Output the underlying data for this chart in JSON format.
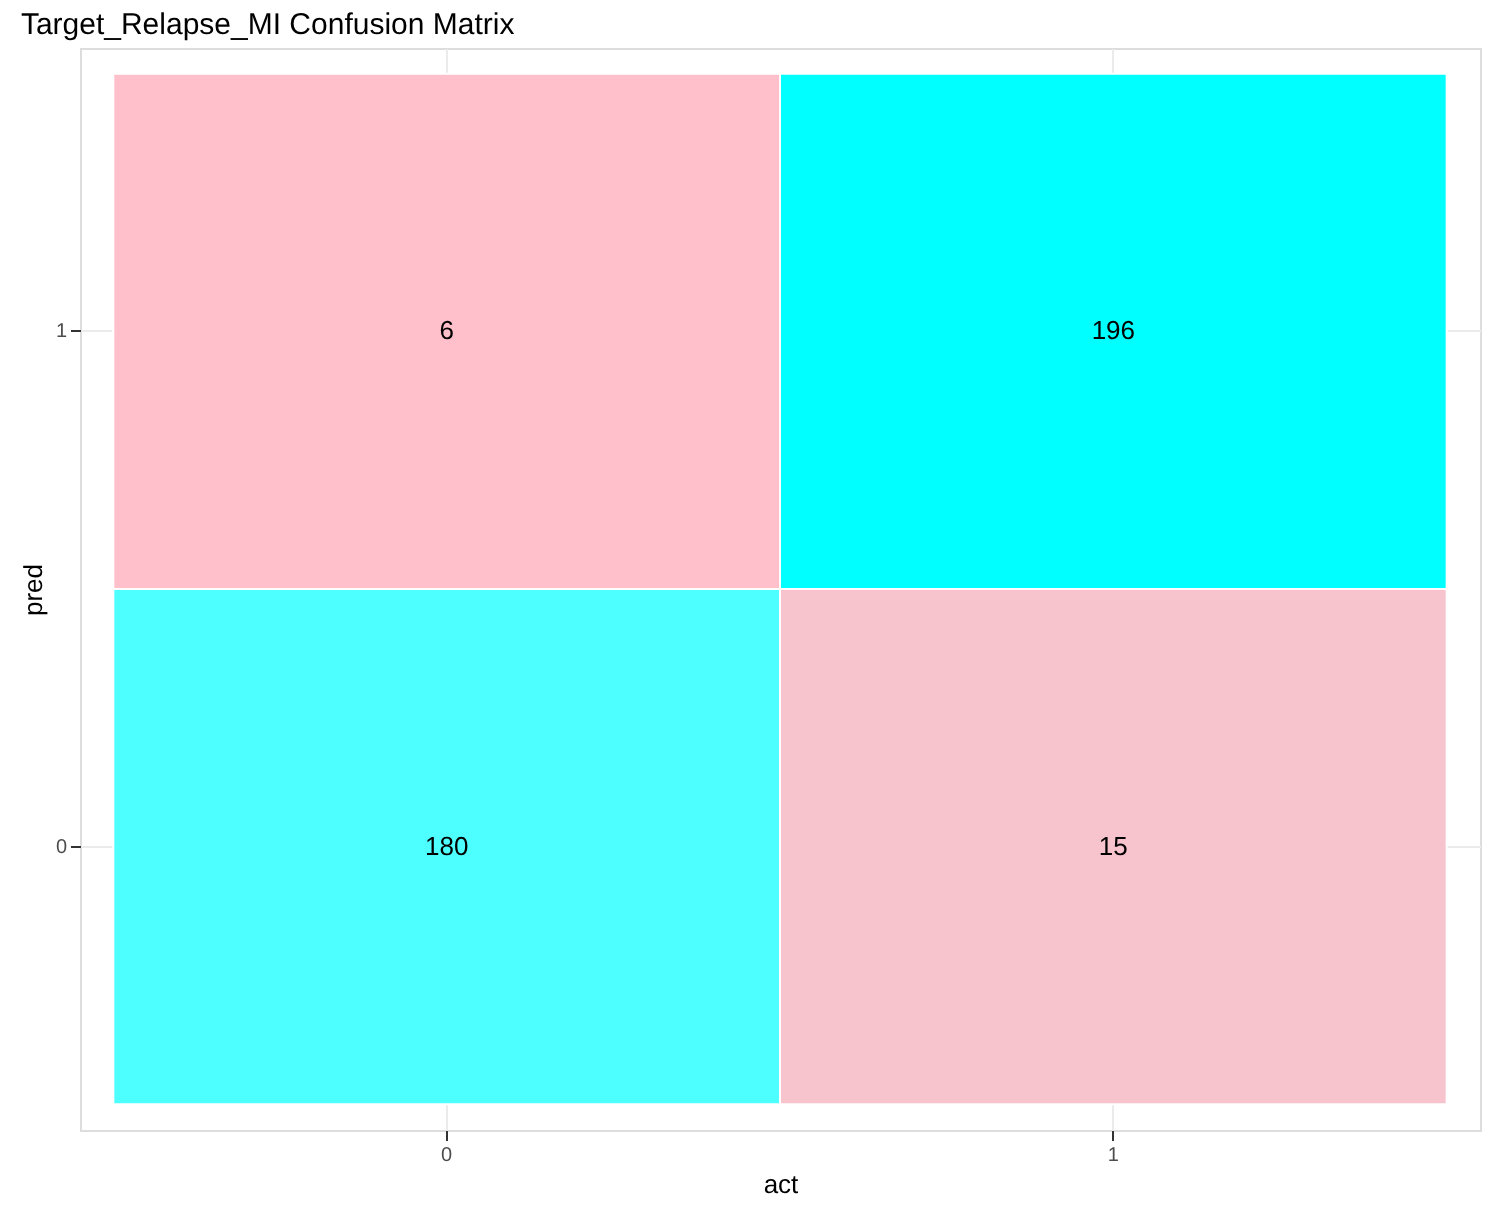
{
  "chart_data": {
    "type": "heatmap",
    "title": "Target_Relapse_MI Confusion Matrix",
    "xlabel": "act",
    "ylabel": "pred",
    "categories": [
      "0",
      "1"
    ],
    "y_categories": [
      "1",
      "0"
    ],
    "cells": [
      [
        6,
        196
      ],
      [
        180,
        15
      ]
    ],
    "colors": [
      "#ffc0cb",
      "#00ffff",
      "#4dffff",
      "#f7c3cd"
    ],
    "data_labels": true,
    "grid": true,
    "legend": false
  }
}
